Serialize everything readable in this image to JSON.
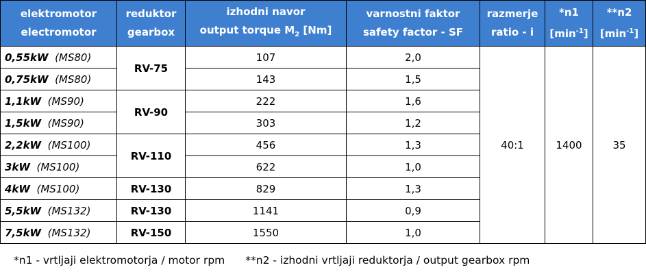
{
  "header": [
    {
      "line1": "elektromotor",
      "line2": [
        {
          "text": "electromotor"
        }
      ]
    },
    {
      "line1": "reduktor",
      "line2": [
        {
          "text": "gearbox"
        }
      ]
    },
    {
      "line1": "izhodni navor",
      "line2": [
        {
          "text": "output torque M"
        },
        {
          "sub": "2"
        },
        {
          "text": " [Nm]"
        }
      ]
    },
    {
      "line1": "varnostni faktor",
      "line2": [
        {
          "text": "safety factor - SF"
        }
      ]
    },
    {
      "line1": "razmerje",
      "line2": [
        {
          "text": "ratio  - i"
        }
      ]
    },
    {
      "line1": "*n1",
      "line2": [
        {
          "text": "[min"
        },
        {
          "sup": "-1"
        },
        {
          "text": "]"
        }
      ]
    },
    {
      "line1": "**n2",
      "line2": [
        {
          "text": "[min"
        },
        {
          "sup": "-1"
        },
        {
          "text": "]"
        }
      ]
    }
  ],
  "rows": [
    {
      "power": "0,55kW",
      "motor": "(MS80)",
      "gearbox": "RV-75",
      "torque": 107,
      "sf": "2,0"
    },
    {
      "power": "0,75kW",
      "motor": "(MS80)",
      "gearbox": null,
      "torque": 143,
      "sf": "1,5"
    },
    {
      "power": "1,1kW",
      "motor": "(MS90)",
      "gearbox": "RV-90",
      "torque": 222,
      "sf": "1,6"
    },
    {
      "power": "1,5kW",
      "motor": "(MS90)",
      "gearbox": null,
      "torque": 303,
      "sf": "1,2"
    },
    {
      "power": "2,2kW",
      "motor": "(MS100)",
      "gearbox": "RV-110",
      "torque": 456,
      "sf": "1,3"
    },
    {
      "power": "3kW",
      "motor": "(MS100)",
      "gearbox": null,
      "torque": 622,
      "sf": "1,0"
    },
    {
      "power": "4kW",
      "motor": "(MS100)",
      "gearbox": "RV-130",
      "torque": 829,
      "sf": "1,3"
    },
    {
      "power": "5,5kW",
      "motor": "(MS132)",
      "gearbox": "RV-130",
      "torque": 1141,
      "sf": "0,9"
    },
    {
      "power": "7,5kW",
      "motor": "(MS132)",
      "gearbox": "RV-150",
      "torque": 1550,
      "sf": "1,0"
    }
  ],
  "shared": {
    "ratio": "40:1",
    "n1": 1400,
    "n2": 35
  },
  "footnotes": [
    "*n1 - vrtljaji elektromotorja / motor rpm",
    "**n2 - izhodni vrtljaji reduktorja / output gearbox rpm"
  ]
}
